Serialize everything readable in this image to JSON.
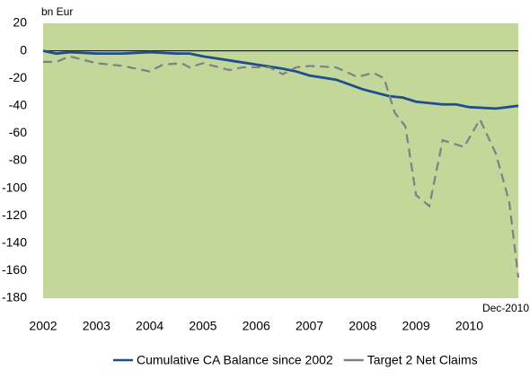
{
  "chart_data": {
    "type": "line",
    "y_label": "bn Eur",
    "annotation": "Dec-2010",
    "background": "#c4d79b",
    "xlim": [
      2002,
      2010.92
    ],
    "xticks": [
      2002,
      2003,
      2004,
      2005,
      2006,
      2007,
      2008,
      2009,
      2010
    ],
    "ylim": [
      -180,
      20
    ],
    "yticks": [
      20,
      0,
      -20,
      -40,
      -60,
      -80,
      -100,
      -120,
      -140,
      -160,
      -180
    ],
    "series": [
      {
        "name": "Cumulative CA Balance since 2002",
        "color": "#1f4e8c",
        "dashed": false,
        "x": [
          2002,
          2002.25,
          2002.5,
          2003,
          2003.5,
          2004,
          2004.5,
          2004.75,
          2005,
          2005.5,
          2006,
          2006.5,
          2006.75,
          2007,
          2007.5,
          2008,
          2008.5,
          2008.75,
          2009,
          2009.5,
          2009.75,
          2010,
          2010.5,
          2010.92
        ],
        "values": [
          0,
          -2,
          -1,
          -2,
          -2,
          -1,
          -2,
          -2,
          -4,
          -7,
          -10,
          -13,
          -15,
          -18,
          -21,
          -28,
          -33,
          -34,
          -37,
          -39,
          -39,
          -41,
          -42,
          -40
        ]
      },
      {
        "name": "Target 2 Net Claims",
        "color": "#808080",
        "dashed": true,
        "x": [
          2002,
          2002.25,
          2002.5,
          2003,
          2003.5,
          2004,
          2004.25,
          2004.6,
          2004.75,
          2005,
          2005.5,
          2005.75,
          2006,
          2006.25,
          2006.5,
          2006.75,
          2007,
          2007.5,
          2007.9,
          2008.2,
          2008.4,
          2008.6,
          2008.8,
          2009,
          2009.25,
          2009.5,
          2009.9,
          2010.2,
          2010.5,
          2010.75,
          2010.92
        ],
        "values": [
          -8,
          -8,
          -4,
          -9,
          -11,
          -15,
          -10,
          -9,
          -12,
          -9,
          -14,
          -12,
          -12,
          -12,
          -17,
          -12,
          -11,
          -12,
          -19,
          -16,
          -20,
          -45,
          -55,
          -105,
          -113,
          -65,
          -70,
          -50,
          -75,
          -110,
          -165
        ]
      }
    ]
  }
}
